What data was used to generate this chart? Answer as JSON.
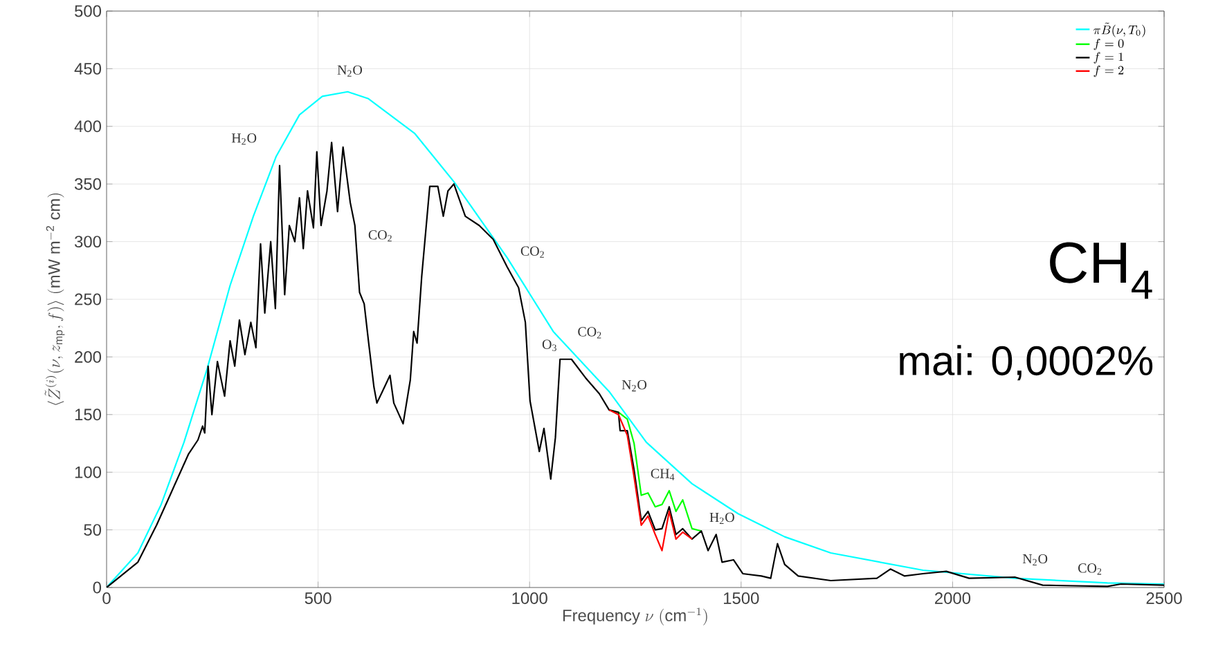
{
  "chart_data": {
    "type": "line",
    "xlabel": "\\mathrm{Frequency}\\ \\nu\\ (\\mathrm{cm}^{-1})",
    "ylabel": "\\langle \\tilde{Z}^{(i)}(\\nu, z_{\\mathrm{mp}}, f)\\rangle\\ (\\mathrm{mW\\ m^{-2}\\ cm})",
    "series": [
      {
        "name": "\\pi\\tilde{B}(\\nu,T_0)",
        "color": "#00ffff",
        "x": [
          0,
          74,
          129,
          183,
          238,
          292,
          347,
          401,
          456,
          510,
          570,
          619,
          728,
          821,
          947,
          1056,
          1188,
          1276,
          1384,
          1493,
          1603,
          1712,
          1930,
          2147,
          2366,
          2500
        ],
        "values": [
          0,
          30,
          72,
          126,
          190,
          262,
          322,
          374,
          410,
          426,
          430,
          424,
          394,
          352,
          286,
          222,
          170,
          126,
          90,
          64,
          44,
          30,
          15,
          8,
          4,
          3
        ]
      },
      {
        "name": "f=0",
        "color": "#00ff00",
        "x": [
          1188,
          1210,
          1231,
          1247,
          1264,
          1280,
          1297,
          1313,
          1330,
          1346,
          1362,
          1384,
          1406
        ],
        "values": [
          154,
          152,
          146,
          125,
          80,
          82,
          70,
          72,
          84,
          66,
          76,
          51,
          49
        ]
      },
      {
        "name": "f=1",
        "color": "#000000",
        "x": [
          0,
          74,
          118,
          150,
          167,
          194,
          216,
          227,
          232,
          240,
          249,
          262,
          279,
          292,
          303,
          314,
          327,
          341,
          353,
          364,
          374,
          388,
          399,
          409,
          421,
          432,
          445,
          456,
          465,
          475,
          489,
          497,
          507,
          521,
          532,
          546,
          559,
          576,
          587,
          598,
          609,
          619,
          632,
          639,
          652,
          670,
          679,
          701,
          718,
          726,
          734,
          745,
          764,
          783,
          796,
          807,
          821,
          848,
          881,
          914,
          947,
          974,
          990,
          1001,
          1023,
          1034,
          1050,
          1061,
          1072,
          1099,
          1132,
          1165,
          1188,
          1210,
          1214,
          1231,
          1247,
          1264,
          1280,
          1297,
          1313,
          1330,
          1346,
          1362,
          1384,
          1406,
          1422,
          1441,
          1455,
          1482,
          1504,
          1548,
          1570,
          1586,
          1603,
          1635,
          1712,
          1821,
          1853,
          1886,
          1930,
          1985,
          2039,
          2147,
          2213,
          2366,
          2398,
          2500
        ],
        "values": [
          0,
          22,
          54,
          80,
          94,
          116,
          128,
          140,
          134,
          192,
          150,
          196,
          166,
          214,
          192,
          232,
          202,
          230,
          208,
          298,
          238,
          300,
          242,
          366,
          254,
          314,
          300,
          338,
          294,
          344,
          312,
          378,
          314,
          344,
          386,
          326,
          382,
          334,
          314,
          256,
          246,
          214,
          174,
          160,
          170,
          184,
          160,
          142,
          180,
          222,
          212,
          270,
          348,
          348,
          322,
          344,
          350,
          322,
          314,
          302,
          278,
          260,
          230,
          162,
          118,
          138,
          94,
          130,
          198,
          198,
          182,
          168,
          154,
          152,
          136,
          136,
          102,
          58,
          66,
          50,
          51,
          70,
          46,
          51,
          42,
          49,
          32,
          46,
          22,
          24,
          12,
          10,
          8,
          38,
          20,
          10,
          6,
          8,
          16,
          10,
          12,
          14,
          8,
          9,
          2,
          1,
          3,
          2
        ]
      },
      {
        "name": "f=2",
        "color": "#ff0000",
        "x": [
          1188,
          1210,
          1231,
          1247,
          1264,
          1280,
          1297,
          1313,
          1330,
          1346,
          1362,
          1384
        ],
        "values": [
          154,
          150,
          132,
          96,
          54,
          62,
          46,
          32,
          66,
          42,
          48,
          42
        ]
      }
    ],
    "xlim": [
      0,
      2500
    ],
    "ylim": [
      0,
      500
    ],
    "xticks": [
      0,
      500,
      1000,
      1500,
      2000,
      2500
    ],
    "yticks": [
      0,
      50,
      100,
      150,
      200,
      250,
      300,
      350,
      400,
      450,
      500
    ],
    "grid": true,
    "legend": "top right",
    "annotations": [
      "H$_{2}$O",
      "N$_{2}$O",
      "CO$_{2}$",
      "CO$_{2}$",
      "O$_{3}$",
      "CO$_{2}$",
      "N$_{2}$O",
      "CH$_{4}$",
      "H$_{2}$O",
      "N$_{2}$O",
      "CO$_{2}$",
      "CH$_{4}$",
      "mai: 0,0002%"
    ]
  }
}
